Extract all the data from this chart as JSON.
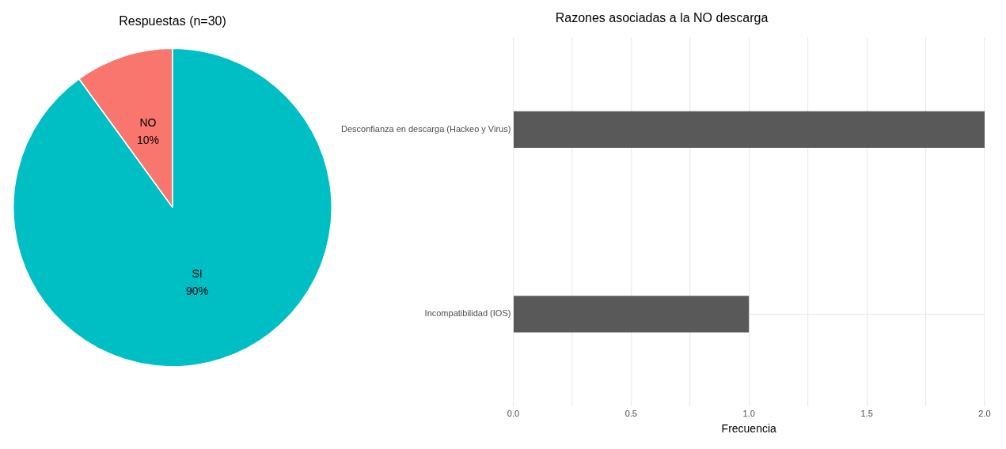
{
  "chart_data": [
    {
      "type": "pie",
      "title": "Respuestas (n=30)",
      "categories": [
        "NO",
        "SI"
      ],
      "values": [
        10,
        90
      ],
      "colors": [
        "#f8766d",
        "#00bfc4"
      ],
      "value_labels": [
        "10%",
        "90%"
      ],
      "legend": false
    },
    {
      "type": "bar",
      "title": "Razones asociadas a la NO descarga",
      "orientation": "horizontal",
      "categories": [
        "Desconfianza en descarga (Hackeo y Virus)",
        "Incompatibilidad (IOS)"
      ],
      "values": [
        2,
        1
      ],
      "color": "#595959",
      "xlim": [
        0,
        2
      ],
      "xticks": [
        {
          "value": 0,
          "label": "0.0"
        },
        {
          "value": 0.25,
          "label": null
        },
        {
          "value": 0.5,
          "label": "0.5"
        },
        {
          "value": 0.75,
          "label": null
        },
        {
          "value": 1,
          "label": "1.0"
        },
        {
          "value": 1.25,
          "label": null
        },
        {
          "value": 1.5,
          "label": "1.5"
        },
        {
          "value": 1.75,
          "label": null
        },
        {
          "value": 2,
          "label": "2.0"
        }
      ],
      "xlabel": "Frecuencia",
      "grid": true,
      "legend": false
    }
  ]
}
